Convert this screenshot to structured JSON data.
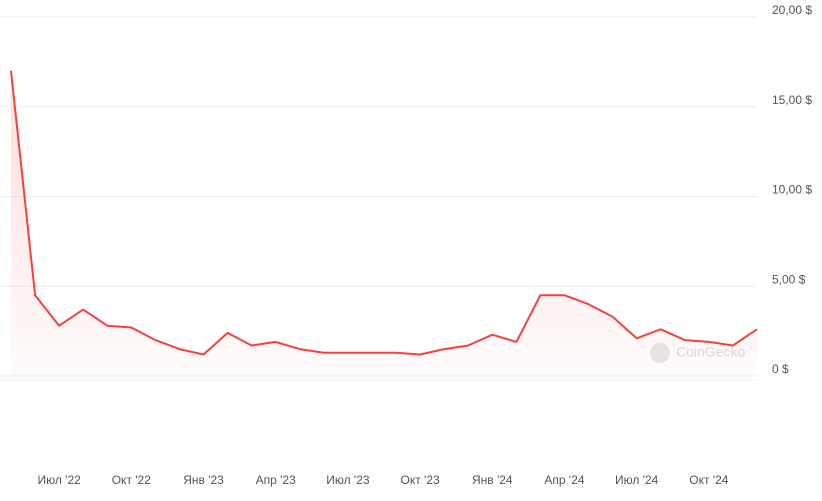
{
  "chart_data": {
    "type": "line",
    "categories": [
      null,
      null,
      "Июл '22",
      null,
      null,
      "Окт '22",
      null,
      null,
      "Янв '23",
      null,
      null,
      "Апр '23",
      null,
      null,
      "Июл '23",
      null,
      null,
      "Окт '23",
      null,
      null,
      "Янв '24",
      null,
      null,
      "Апр '24",
      null,
      null,
      "Июл '24",
      null,
      null,
      "Окт '24",
      null,
      null
    ],
    "series": [
      {
        "color": "#f4433f",
        "values": [
          17,
          4.5,
          2.8,
          3.7,
          2.8,
          2.7,
          2.0,
          1.5,
          1.2,
          2.4,
          1.7,
          1.9,
          1.5,
          1.3,
          1.3,
          1.3,
          1.3,
          1.2,
          1.5,
          1.7,
          2.3,
          1.9,
          4.5,
          4.5,
          4.0,
          3.3,
          2.1,
          2.6,
          2.0,
          1.9,
          1.7,
          2.6
        ]
      }
    ],
    "ylim": [
      0,
      20
    ],
    "yticks": [
      {
        "value": 0,
        "label": "0 $"
      },
      {
        "value": 5,
        "label": "5,00 $"
      },
      {
        "value": 10,
        "label": "10,00 $"
      },
      {
        "value": 15,
        "label": "15,00 $"
      },
      {
        "value": 20,
        "label": "20,00 $"
      }
    ],
    "grid": true,
    "watermark": "CoinGecko"
  }
}
